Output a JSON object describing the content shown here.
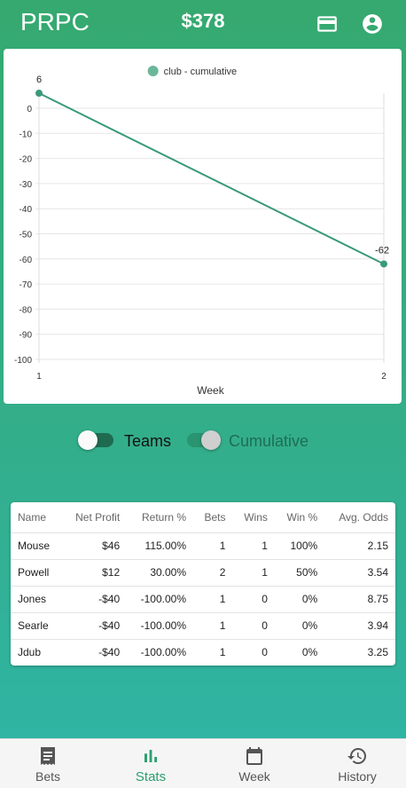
{
  "app": {
    "brand": "PRPC",
    "balance": "$378"
  },
  "header_icons": [
    "credit-card-icon",
    "account-circle-icon"
  ],
  "colors": {
    "accent": "#2e9e70",
    "line": "#3a9a78",
    "bg_top": "#35a96f",
    "bg_bottom": "#2fb5a7"
  },
  "chart_data": {
    "type": "line",
    "legend": "club - cumulative",
    "legend_position": "top",
    "xlabel": "Week",
    "ylabel": "",
    "x": [
      1,
      2
    ],
    "series": [
      {
        "name": "club - cumulative",
        "values": [
          6,
          -62
        ]
      }
    ],
    "point_labels": [
      "6",
      "-62"
    ],
    "ylim": [
      -100,
      0
    ],
    "yticks": [
      0,
      -10,
      -20,
      -30,
      -40,
      -50,
      -60,
      -70,
      -80,
      -90,
      -100
    ],
    "xticks": [
      1,
      2
    ],
    "grid": true
  },
  "toggles": {
    "teams": {
      "label": "Teams",
      "on": false
    },
    "cumulative": {
      "label": "Cumulative",
      "on": true
    }
  },
  "table": {
    "headers": [
      "Name",
      "Net Profit",
      "Return %",
      "Bets",
      "Wins",
      "Win %",
      "Avg. Odds"
    ],
    "rows": [
      [
        "Mouse",
        "$46",
        "115.00%",
        "1",
        "1",
        "100%",
        "2.15"
      ],
      [
        "Powell",
        "$12",
        "30.00%",
        "2",
        "1",
        "50%",
        "3.54"
      ],
      [
        "Jones",
        "-$40",
        "-100.00%",
        "1",
        "0",
        "0%",
        "8.75"
      ],
      [
        "Searle",
        "-$40",
        "-100.00%",
        "1",
        "0",
        "0%",
        "3.94"
      ],
      [
        "Jdub",
        "-$40",
        "-100.00%",
        "1",
        "0",
        "0%",
        "3.25"
      ]
    ]
  },
  "nav": {
    "active": "stats",
    "items": [
      {
        "key": "bets",
        "label": "Bets",
        "icon": "receipt-icon"
      },
      {
        "key": "stats",
        "label": "Stats",
        "icon": "bar-chart-icon"
      },
      {
        "key": "week",
        "label": "Week",
        "icon": "calendar-icon"
      },
      {
        "key": "history",
        "label": "History",
        "icon": "history-icon"
      }
    ]
  }
}
